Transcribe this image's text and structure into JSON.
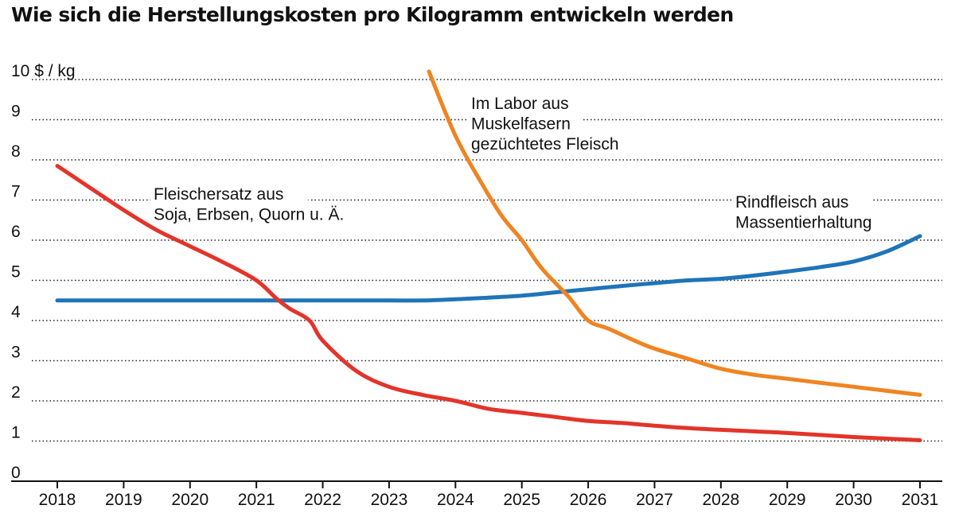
{
  "chart_data": {
    "type": "line",
    "title": "Wie sich die Herstellungskosten pro Kilogramm entwickeln werden",
    "ylabel": "$ / kg",
    "ylim": [
      0,
      10
    ],
    "xlim": [
      2018,
      2031
    ],
    "grid": true,
    "y_ticks": [
      "0",
      "1",
      "2",
      "3",
      "4",
      "5",
      "6",
      "7",
      "8",
      "9",
      "10 $ / kg"
    ],
    "x_ticks": [
      "2018",
      "2019",
      "2020",
      "2021",
      "2022",
      "2023",
      "2024",
      "2025",
      "2026",
      "2027",
      "2028",
      "2029",
      "2030",
      "2031"
    ],
    "series": [
      {
        "name": "Fleischersatz aus Soja, Erbsen, Quorn u. Ä.",
        "label_lines": [
          "Fleischersatz aus",
          "Soja, Erbsen, Quorn u. Ä."
        ],
        "color": "#e3342a",
        "x": [
          2018,
          2018.5,
          2019,
          2019.5,
          2020,
          2020.5,
          2021,
          2021.3,
          2021.5,
          2021.8,
          2022,
          2022.5,
          2023,
          2023.5,
          2024,
          2024.5,
          2025,
          2025.5,
          2026,
          2026.5,
          2027,
          2027.5,
          2028,
          2028.5,
          2029,
          2029.5,
          2030,
          2030.5,
          2031
        ],
        "y": [
          7.85,
          7.3,
          6.75,
          6.25,
          5.85,
          5.45,
          5.0,
          4.55,
          4.3,
          4.0,
          3.5,
          2.75,
          2.35,
          2.15,
          2.0,
          1.8,
          1.7,
          1.6,
          1.5,
          1.45,
          1.38,
          1.32,
          1.28,
          1.24,
          1.2,
          1.15,
          1.1,
          1.06,
          1.02
        ]
      },
      {
        "name": "Rindfleisch aus Massentierhaltung",
        "label_lines": [
          "Rindfleisch aus",
          "Massentierhaltung"
        ],
        "color": "#1f74b8",
        "x": [
          2018,
          2019,
          2020,
          2021,
          2022,
          2023,
          2023.5,
          2024,
          2024.5,
          2025,
          2025.5,
          2026,
          2026.5,
          2027,
          2027.5,
          2028,
          2028.5,
          2029,
          2029.5,
          2030,
          2030.5,
          2031
        ],
        "y": [
          4.5,
          4.5,
          4.5,
          4.5,
          4.5,
          4.5,
          4.5,
          4.53,
          4.57,
          4.62,
          4.7,
          4.78,
          4.86,
          4.93,
          5.0,
          5.04,
          5.12,
          5.22,
          5.33,
          5.47,
          5.72,
          6.1
        ]
      },
      {
        "name": "Im Labor aus Muskelfasern gezüchtetes Fleisch",
        "label_lines": [
          "Im Labor aus",
          "Muskelfasern",
          "gezüchtetes Fleisch"
        ],
        "color": "#ef8422",
        "x": [
          2023.6,
          2024.0,
          2024.4,
          2024.7,
          2025.0,
          2025.3,
          2025.7,
          2026.0,
          2026.3,
          2026.7,
          2027.0,
          2027.5,
          2028.0,
          2028.5,
          2029.0,
          2029.5,
          2030.0,
          2030.5,
          2031.0
        ],
        "y": [
          10.2,
          8.6,
          7.4,
          6.6,
          6.0,
          5.3,
          4.6,
          4.0,
          3.8,
          3.5,
          3.3,
          3.05,
          2.8,
          2.65,
          2.55,
          2.45,
          2.35,
          2.25,
          2.15
        ]
      }
    ]
  }
}
